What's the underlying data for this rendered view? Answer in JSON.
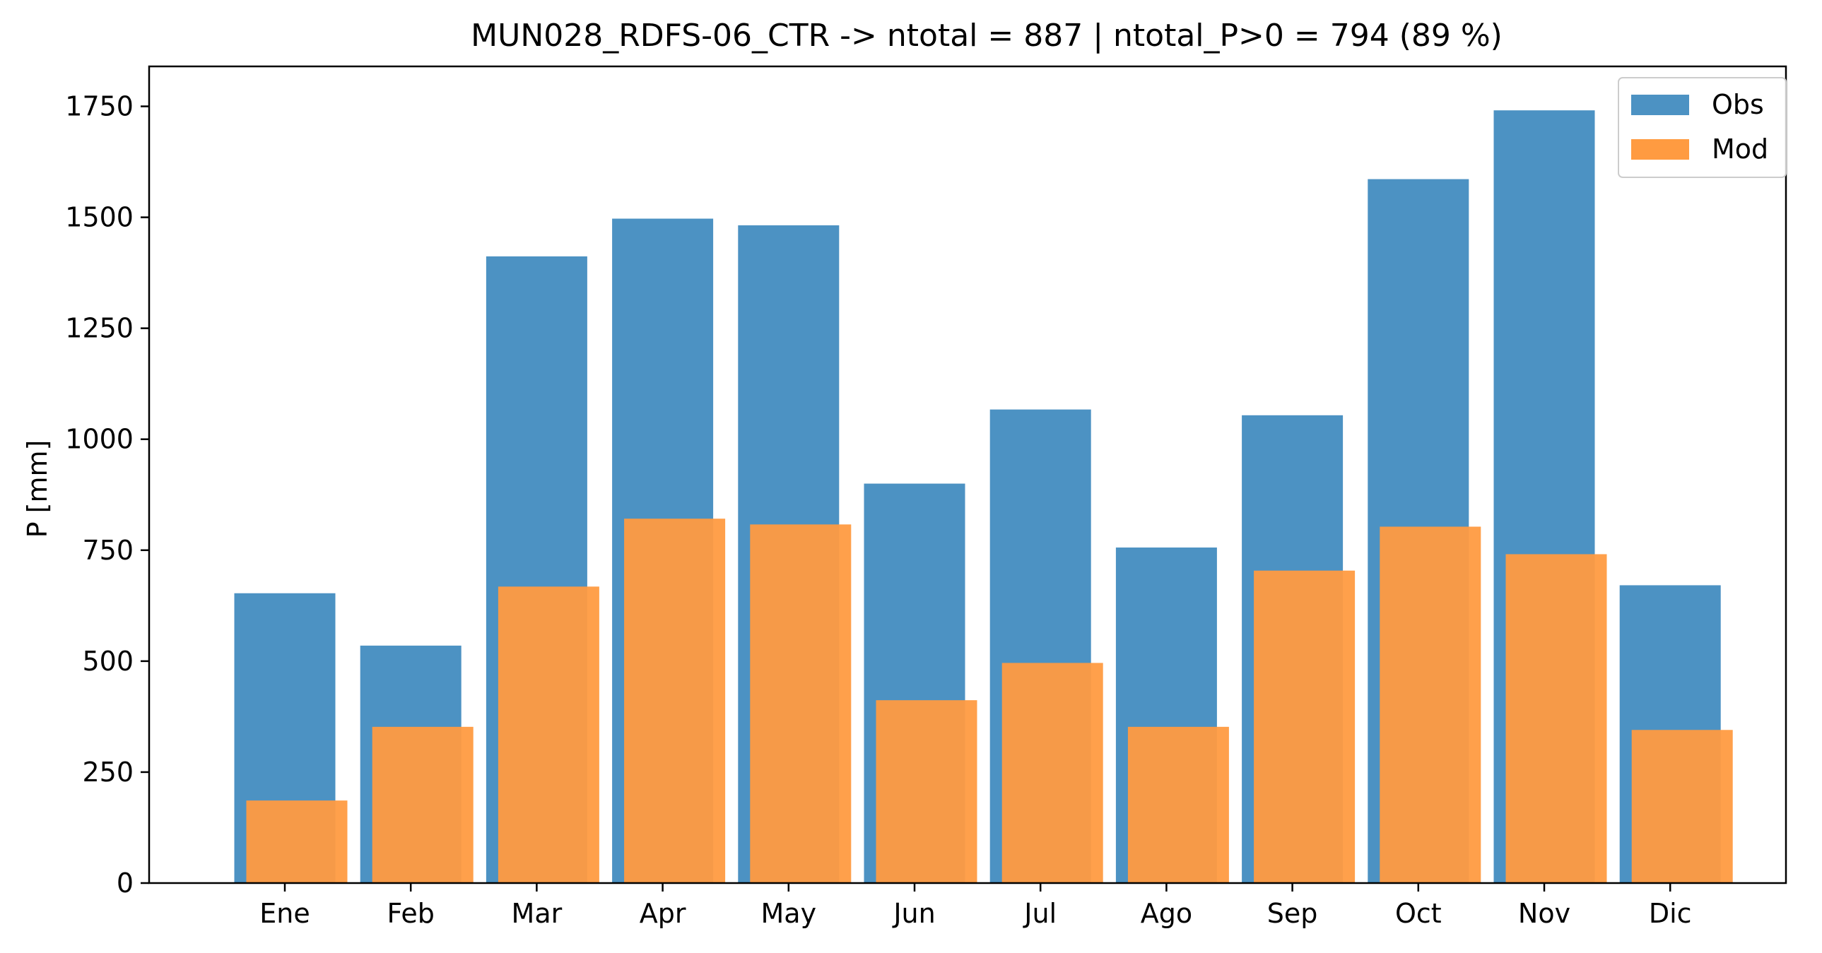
{
  "chart_data": {
    "type": "bar",
    "title": "MUN028_RDFS-06_CTR -> ntotal = 887 | ntotal_P>0 = 794 (89 %)",
    "xlabel": "",
    "ylabel": "P [mm]",
    "ylim": [
      0,
      1840
    ],
    "yticks": [
      0,
      250,
      500,
      750,
      1000,
      1250,
      1500,
      1750
    ],
    "grid": false,
    "legend_position": "top-right",
    "categories": [
      "Ene",
      "Feb",
      "Mar",
      "Apr",
      "May",
      "Jun",
      "Jul",
      "Ago",
      "Sep",
      "Oct",
      "Nov",
      "Dic"
    ],
    "series": [
      {
        "name": "Obs",
        "color": "#4c92c3",
        "values": [
          653,
          535,
          1412,
          1497,
          1482,
          900,
          1067,
          756,
          1054,
          1586,
          1741,
          671
        ]
      },
      {
        "name": "Mod",
        "color": "#ff9b41",
        "values": [
          186,
          352,
          668,
          821,
          808,
          412,
          496,
          352,
          704,
          803,
          741,
          345
        ]
      }
    ]
  }
}
